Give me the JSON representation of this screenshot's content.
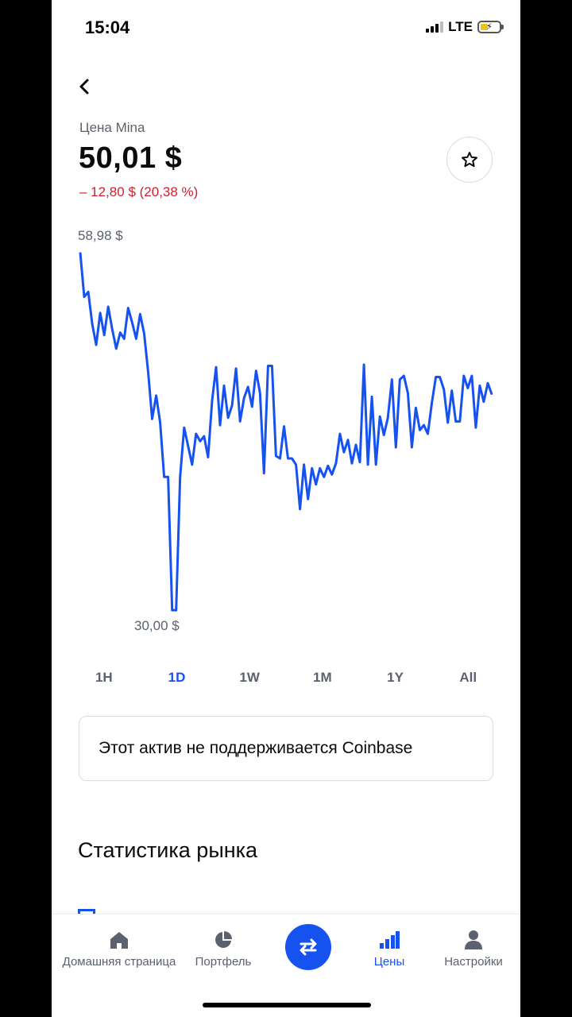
{
  "status_bar": {
    "time": "15:04",
    "network": "LTE"
  },
  "header": {
    "back_icon": "chevron-left-icon",
    "price_label": "Цена Mina",
    "price_value": "50,01 $",
    "price_change": "– 12,80 $ (20,38 %)",
    "watchlist_icon": "star-outline-icon"
  },
  "colors": {
    "accent": "#1652f0",
    "negative": "#cf202f",
    "chart_line": "#1652f0",
    "muted_text": "#5b616e"
  },
  "chart_data": {
    "type": "line",
    "high_label": "58,98 $",
    "low_label": "30,00 $",
    "ylim": [
      30.0,
      58.98
    ],
    "series": [
      {
        "values": [
          58.98,
          55.4,
          55.8,
          53.2,
          51.5,
          54.1,
          52.3,
          54.6,
          52.8,
          51.2,
          52.5,
          52.0,
          54.5,
          53.3,
          52.0,
          54.0,
          52.4,
          49.3,
          45.5,
          47.4,
          45.2,
          40.8,
          40.8,
          30.0,
          30.0,
          40.8,
          44.8,
          43.3,
          41.8,
          44.3,
          43.7,
          44.1,
          42.4,
          47.0,
          49.7,
          45.0,
          48.2,
          45.6,
          46.6,
          49.6,
          45.3,
          47.2,
          48.1,
          46.5,
          49.4,
          47.6,
          41.1,
          49.8,
          49.8,
          42.5,
          42.3,
          44.9,
          42.3,
          42.3,
          41.8,
          38.2,
          41.8,
          39.0,
          41.5,
          40.2,
          41.5,
          40.8,
          41.7,
          41.0,
          41.9,
          44.3,
          42.8,
          43.8,
          41.9,
          43.4,
          42.0,
          49.9,
          41.8,
          47.3,
          41.8,
          45.7,
          44.2,
          45.6,
          48.7,
          43.2,
          48.7,
          49.0,
          47.6,
          43.2,
          46.4,
          44.6,
          45.0,
          44.3,
          46.8,
          48.9,
          48.9,
          47.9,
          45.2,
          47.8,
          45.3,
          45.3,
          49.0,
          48.0,
          49.0,
          44.8,
          48.2,
          46.9,
          48.4,
          47.5
        ]
      }
    ],
    "grid": false,
    "legend": "none"
  },
  "range_tabs": [
    {
      "label": "1H",
      "active": false
    },
    {
      "label": "1D",
      "active": true
    },
    {
      "label": "1W",
      "active": false
    },
    {
      "label": "1M",
      "active": false
    },
    {
      "label": "1Y",
      "active": false
    },
    {
      "label": "All",
      "active": false
    }
  ],
  "notice": {
    "text": "Этот актив не поддерживается Coinbase"
  },
  "market_stats": {
    "title": "Статистика рынка"
  },
  "bottom_nav": {
    "home": {
      "label": "Домашняя страница",
      "icon": "house-icon"
    },
    "portfolio": {
      "label": "Портфель",
      "icon": "pie-chart-icon"
    },
    "trade": {
      "icon": "swap-arrows-icon"
    },
    "prices": {
      "label": "Цены",
      "icon": "bar-chart-icon",
      "active": true
    },
    "settings": {
      "label": "Настройки",
      "icon": "person-icon"
    }
  }
}
